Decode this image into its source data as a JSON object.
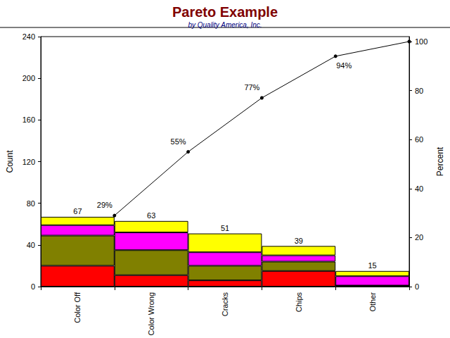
{
  "chart_data": {
    "type": "bar",
    "title": "Pareto Example",
    "subtitle": "by Quality America, Inc.",
    "y_label": "Count",
    "y2_label": "Percent",
    "categories": [
      "Color Off",
      "Color Wrong",
      "Cracks",
      "Chips",
      "Other"
    ],
    "stacked": true,
    "data_labels": true,
    "grid": false,
    "series": [
      {
        "type": "bar",
        "color": "#ff0000",
        "values": [
          20,
          11,
          6,
          15,
          1
        ]
      },
      {
        "type": "bar",
        "color": "#808000",
        "values": [
          29,
          24,
          14,
          9,
          0
        ]
      },
      {
        "type": "bar",
        "color": "#ff00ff",
        "values": [
          10,
          17,
          13,
          6,
          9
        ]
      },
      {
        "type": "bar",
        "color": "#ffff00",
        "values": [
          8,
          11,
          18,
          9,
          5
        ]
      },
      {
        "type": "line",
        "axis": "y2",
        "color": "#000000",
        "marker": "circle",
        "data_labels": true,
        "values": [
          29,
          55,
          77,
          94,
          100
        ],
        "value_labels": [
          "29%",
          "55%",
          "77%",
          "94%",
          null
        ]
      }
    ],
    "totals": [
      67,
      63,
      51,
      39,
      15
    ],
    "ylim": [
      0,
      240
    ],
    "yticks": [
      0,
      40,
      80,
      120,
      160,
      200,
      240
    ],
    "y2lim": [
      0,
      102
    ],
    "y2ticks": [
      0,
      20,
      40,
      60,
      80,
      100
    ]
  }
}
